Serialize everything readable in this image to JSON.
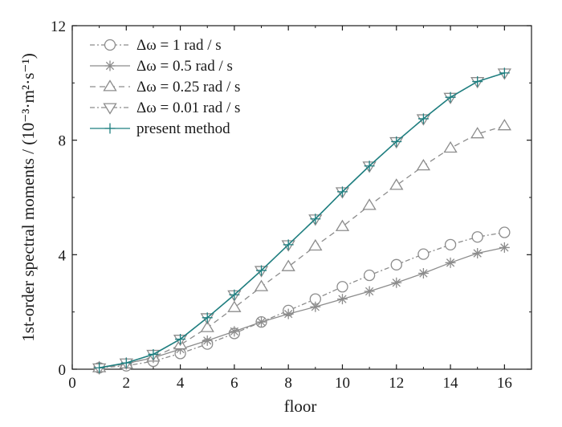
{
  "chart_data": {
    "type": "line",
    "xlabel": "floor",
    "ylabel": "1st-order spectral moments / (10⁻³·m²·s⁻¹)",
    "xlim": [
      0,
      17
    ],
    "ylim": [
      0,
      12
    ],
    "xticks": [
      0,
      2,
      4,
      6,
      8,
      10,
      12,
      14,
      16
    ],
    "yticks": [
      0,
      4,
      8,
      12
    ],
    "x": [
      1,
      2,
      3,
      4,
      5,
      6,
      7,
      8,
      9,
      10,
      11,
      12,
      13,
      14,
      15,
      16
    ],
    "legend_position": "top-left",
    "grid": false,
    "series": [
      {
        "name": "Δω = 1 rad / s",
        "marker": "circle",
        "dash": "dashdot",
        "color": "#8c8c8c",
        "values": [
          0.05,
          0.12,
          0.28,
          0.55,
          0.88,
          1.25,
          1.65,
          2.05,
          2.45,
          2.88,
          3.28,
          3.65,
          4.02,
          4.35,
          4.62,
          4.78
        ]
      },
      {
        "name": "Δω = 0.5 rad / s",
        "marker": "asterisk",
        "dash": "solid",
        "color": "#8c8c8c",
        "values": [
          0.05,
          0.2,
          0.4,
          0.7,
          1.0,
          1.32,
          1.65,
          1.93,
          2.18,
          2.45,
          2.72,
          3.02,
          3.35,
          3.72,
          4.05,
          4.25
        ]
      },
      {
        "name": "Δω = 0.25 rad / s",
        "marker": "triangle-up",
        "dash": "dashed",
        "color": "#8c8c8c",
        "values": [
          0.05,
          0.18,
          0.42,
          0.85,
          1.45,
          2.15,
          2.88,
          3.58,
          4.3,
          4.98,
          5.72,
          6.42,
          7.1,
          7.72,
          8.22,
          8.5
        ]
      },
      {
        "name": "Δω = 0.01 rad / s",
        "marker": "triangle-down",
        "dash": "dashdot",
        "color": "#8c8c8c",
        "values": [
          0.05,
          0.22,
          0.52,
          1.05,
          1.8,
          2.6,
          3.45,
          4.35,
          5.25,
          6.2,
          7.1,
          7.95,
          8.75,
          9.5,
          10.05,
          10.35
        ]
      },
      {
        "name": "present method",
        "marker": "plus",
        "dash": "solid",
        "color": "#1f7f80",
        "values": [
          0.05,
          0.22,
          0.52,
          1.05,
          1.8,
          2.6,
          3.45,
          4.35,
          5.25,
          6.2,
          7.1,
          7.95,
          8.75,
          9.5,
          10.05,
          10.35
        ]
      }
    ]
  }
}
